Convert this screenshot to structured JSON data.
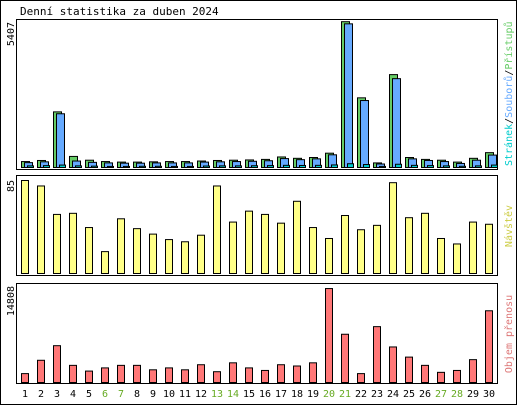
{
  "title": "Denní statistika za duben 2024",
  "legend": {
    "pristupu": "Přístupů",
    "souboru": "Souborů",
    "stranek": "Stránek",
    "navstev": "Návštěv",
    "objem": "Objem přenosu"
  },
  "colors": {
    "pristupu": "#66cc66",
    "souboru": "#66aaff",
    "stranek": "#00cccc",
    "navstev": "#ffff88",
    "objem": "#ff7777",
    "weekend": "#66aa22",
    "text": "#000000",
    "panel_border": "#000000"
  },
  "chart_data": [
    {
      "type": "bar",
      "title": "",
      "categories": [
        "1",
        "2",
        "3",
        "4",
        "5",
        "6",
        "7",
        "8",
        "9",
        "10",
        "11",
        "12",
        "13",
        "14",
        "15",
        "16",
        "17",
        "18",
        "19",
        "20",
        "21",
        "22",
        "23",
        "24",
        "25",
        "26",
        "27",
        "28",
        "29",
        "30"
      ],
      "weekend_days": [
        "6",
        "7",
        "13",
        "14",
        "20",
        "21",
        "27",
        "28"
      ],
      "ymax_label": "5407",
      "ylim": [
        0,
        5407
      ],
      "series": [
        {
          "name": "Přístupů",
          "values": [
            220,
            260,
            2060,
            410,
            270,
            220,
            200,
            200,
            210,
            220,
            220,
            240,
            260,
            270,
            280,
            300,
            390,
            340,
            370,
            530,
            5400,
            2580,
            170,
            3440,
            370,
            300,
            270,
            200,
            340,
            550
          ]
        },
        {
          "name": "Souborů",
          "values": [
            180,
            210,
            1990,
            240,
            190,
            170,
            160,
            160,
            170,
            170,
            170,
            200,
            210,
            220,
            230,
            250,
            330,
            290,
            320,
            470,
            5320,
            2480,
            130,
            3290,
            320,
            260,
            220,
            150,
            270,
            460
          ]
        },
        {
          "name": "Stránek",
          "values": [
            60,
            70,
            90,
            60,
            50,
            40,
            40,
            45,
            45,
            40,
            40,
            55,
            60,
            60,
            65,
            70,
            80,
            75,
            80,
            95,
            140,
            110,
            40,
            120,
            80,
            70,
            60,
            45,
            60,
            90
          ]
        }
      ]
    },
    {
      "type": "bar",
      "title": "",
      "categories": [
        "1",
        "2",
        "3",
        "4",
        "5",
        "6",
        "7",
        "8",
        "9",
        "10",
        "11",
        "12",
        "13",
        "14",
        "15",
        "16",
        "17",
        "18",
        "19",
        "20",
        "21",
        "22",
        "23",
        "24",
        "25",
        "26",
        "27",
        "28",
        "29",
        "30"
      ],
      "weekend_days": [
        "6",
        "7",
        "13",
        "14",
        "20",
        "21",
        "27",
        "28"
      ],
      "ymax_label": "85",
      "ylim": [
        0,
        85
      ],
      "series": [
        {
          "name": "Návštěv",
          "values": [
            85,
            80,
            54,
            55,
            42,
            20,
            50,
            41,
            36,
            31,
            29,
            35,
            80,
            47,
            57,
            54,
            46,
            66,
            42,
            32,
            53,
            40,
            44,
            83,
            51,
            55,
            32,
            27,
            47,
            45
          ]
        }
      ]
    },
    {
      "type": "bar",
      "title": "",
      "categories": [
        "1",
        "2",
        "3",
        "4",
        "5",
        "6",
        "7",
        "8",
        "9",
        "10",
        "11",
        "12",
        "13",
        "14",
        "15",
        "16",
        "17",
        "18",
        "19",
        "20",
        "21",
        "22",
        "23",
        "24",
        "25",
        "26",
        "27",
        "28",
        "29",
        "30"
      ],
      "weekend_days": [
        "6",
        "7",
        "13",
        "14",
        "20",
        "21",
        "27",
        "28"
      ],
      "ymax_label": "14808",
      "ylim": [
        0,
        14808
      ],
      "series": [
        {
          "name": "Objem přenosu",
          "values": [
            1400,
            3500,
            5800,
            2700,
            1800,
            2300,
            2700,
            2700,
            2000,
            2300,
            2000,
            2800,
            1700,
            3100,
            2300,
            1900,
            2800,
            2600,
            3100,
            14800,
            7600,
            1400,
            8800,
            5600,
            4000,
            2700,
            1600,
            1900,
            3600,
            11300
          ]
        }
      ]
    }
  ]
}
